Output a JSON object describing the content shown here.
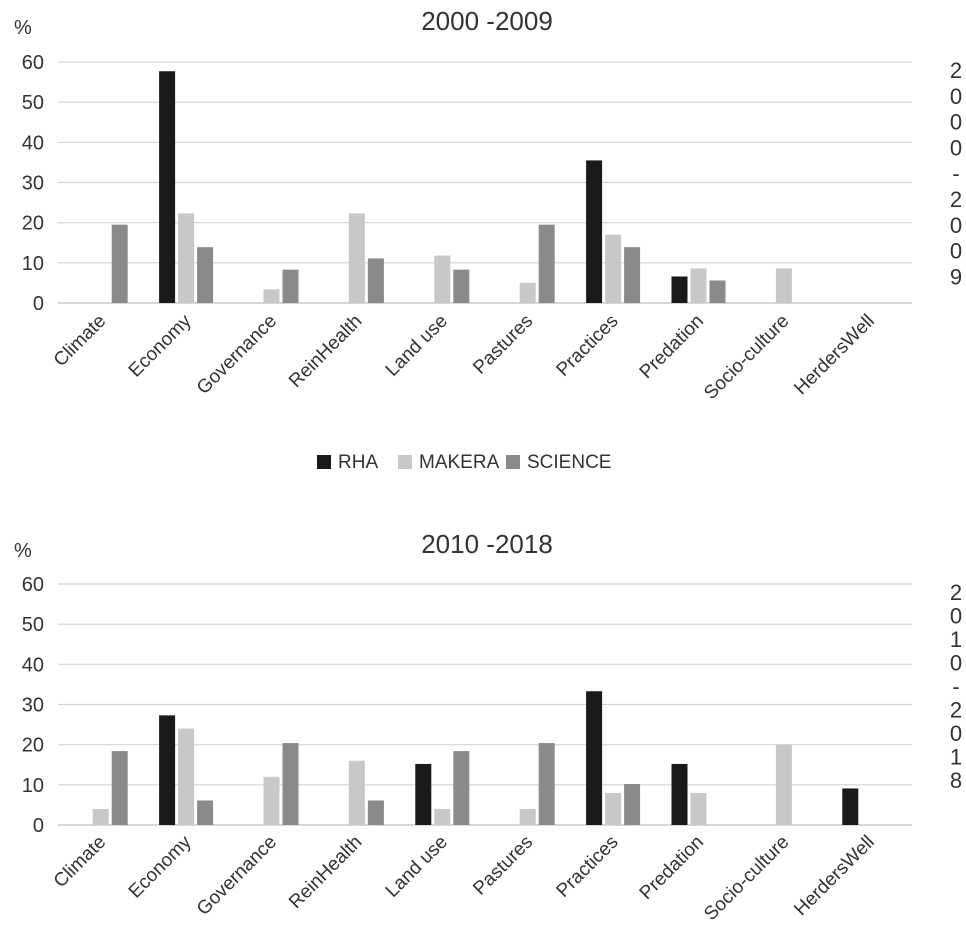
{
  "chart_data": [
    {
      "type": "bar",
      "title": "2000  -2009",
      "ylabel": "%",
      "side_label": [
        "2",
        "0",
        "0",
        "0",
        "-",
        "2",
        "0",
        "0",
        "9"
      ],
      "ylim": [
        0,
        60
      ],
      "yticks": [
        0,
        10,
        20,
        30,
        40,
        50,
        60
      ],
      "grid": true,
      "categories": [
        "Climate",
        "Economy",
        "Governance",
        "ReinHealth",
        "Land use",
        "Pastures",
        "Practices",
        "Predation",
        "Socio-culture",
        "HerdersWell"
      ],
      "series": [
        {
          "name": "RHA",
          "color": "#1a1a1a",
          "values": [
            0,
            57.7,
            0,
            0,
            0,
            0,
            35.5,
            6.6,
            0,
            0
          ]
        },
        {
          "name": "MAKERA",
          "color": "#c8c8c8",
          "values": [
            0,
            22.3,
            3.4,
            22.3,
            11.8,
            5.0,
            17.0,
            8.6,
            8.6,
            0
          ]
        },
        {
          "name": "SCIENCE",
          "color": "#8a8a8a",
          "values": [
            19.5,
            13.9,
            8.3,
            11.1,
            8.3,
            19.5,
            13.9,
            5.6,
            0,
            0
          ]
        }
      ],
      "legend_position": "bottom"
    },
    {
      "type": "bar",
      "title": "2010  -2018",
      "ylabel": "%",
      "side_label": [
        "2",
        "0",
        "1",
        "0",
        "-",
        "2",
        "0",
        "1",
        "8"
      ],
      "ylim": [
        0,
        60
      ],
      "yticks": [
        0,
        10,
        20,
        30,
        40,
        50,
        60
      ],
      "grid": true,
      "categories": [
        "Climate",
        "Economy",
        "Governance",
        "ReinHealth",
        "Land use",
        "Pastures",
        "Practices",
        "Predation",
        "Socio-culture",
        "HerdersWell"
      ],
      "series": [
        {
          "name": "RHA",
          "color": "#1a1a1a",
          "values": [
            0,
            27.3,
            0,
            0,
            15.2,
            0,
            33.3,
            15.2,
            0,
            9.1
          ]
        },
        {
          "name": "MAKERA",
          "color": "#c8c8c8",
          "values": [
            4.0,
            24.0,
            12.0,
            16.0,
            4.0,
            4.0,
            8.0,
            8.0,
            20.0,
            0
          ]
        },
        {
          "name": "SCIENCE",
          "color": "#8a8a8a",
          "values": [
            18.4,
            6.1,
            20.4,
            6.1,
            18.4,
            20.4,
            10.2,
            0,
            0,
            0
          ]
        }
      ]
    }
  ]
}
